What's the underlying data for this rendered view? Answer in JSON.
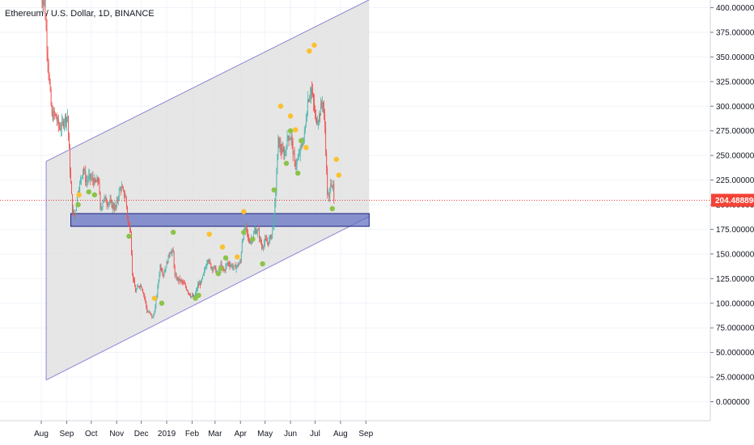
{
  "chart_data": {
    "type": "candlestick",
    "title": "Ethereum / U.S. Dollar, 1D, BINANCE",
    "symbol": "Ethereum / U.S. Dollar",
    "interval": "1D",
    "exchange": "BINANCE",
    "last_price": "204.488898",
    "y_axis": {
      "range": [
        -20,
        410
      ],
      "ticks": [
        "400.000000",
        "375.000000",
        "350.000000",
        "325.000000",
        "300.000000",
        "275.000000",
        "250.000000",
        "225.000000",
        "200.000000",
        "175.000000",
        "150.000000",
        "125.000000",
        "100.000000",
        "75.000000",
        "50.000000",
        "25.000000",
        "0.000000"
      ],
      "tick_values": [
        400,
        375,
        350,
        325,
        300,
        275,
        250,
        225,
        200,
        175,
        150,
        125,
        100,
        75,
        50,
        25,
        0
      ]
    },
    "x_axis": {
      "ticks": [
        "Aug",
        "Sep",
        "Oct",
        "Nov",
        "Dec",
        "2019",
        "Feb",
        "Mar",
        "Apr",
        "May",
        "Jun",
        "Jul",
        "Aug",
        "Sep"
      ],
      "tick_dates": [
        "2018-08-01",
        "2018-09-01",
        "2018-10-01",
        "2018-11-01",
        "2018-12-01",
        "2019-01-01",
        "2019-02-01",
        "2019-03-01",
        "2019-04-01",
        "2019-05-01",
        "2019-06-01",
        "2019-07-01",
        "2019-08-01",
        "2019-09-01"
      ]
    },
    "close_series": [
      [
        "2018-08-01",
        410
      ],
      [
        "2018-08-05",
        408
      ],
      [
        "2018-08-08",
        362
      ],
      [
        "2018-08-11",
        322
      ],
      [
        "2018-08-14",
        290
      ],
      [
        "2018-08-17",
        292
      ],
      [
        "2018-08-20",
        286
      ],
      [
        "2018-08-23",
        278
      ],
      [
        "2018-08-26",
        280
      ],
      [
        "2018-08-29",
        287
      ],
      [
        "2018-09-02",
        290
      ],
      [
        "2018-09-05",
        235
      ],
      [
        "2018-09-08",
        195
      ],
      [
        "2018-09-11",
        188
      ],
      [
        "2018-09-14",
        210
      ],
      [
        "2018-09-18",
        224
      ],
      [
        "2018-09-21",
        238
      ],
      [
        "2018-09-25",
        223
      ],
      [
        "2018-09-28",
        228
      ],
      [
        "2018-10-02",
        226
      ],
      [
        "2018-10-06",
        222
      ],
      [
        "2018-10-10",
        225
      ],
      [
        "2018-10-12",
        194
      ],
      [
        "2018-10-16",
        207
      ],
      [
        "2018-10-20",
        203
      ],
      [
        "2018-10-24",
        202
      ],
      [
        "2018-10-28",
        198
      ],
      [
        "2018-10-31",
        197
      ],
      [
        "2018-11-03",
        210
      ],
      [
        "2018-11-06",
        218
      ],
      [
        "2018-11-09",
        212
      ],
      [
        "2018-11-12",
        207
      ],
      [
        "2018-11-15",
        180
      ],
      [
        "2018-11-18",
        175
      ],
      [
        "2018-11-20",
        130
      ],
      [
        "2018-11-24",
        112
      ],
      [
        "2018-11-28",
        118
      ],
      [
        "2018-12-01",
        118
      ],
      [
        "2018-12-05",
        106
      ],
      [
        "2018-12-08",
        92
      ],
      [
        "2018-12-11",
        90
      ],
      [
        "2018-12-15",
        85
      ],
      [
        "2018-12-18",
        96
      ],
      [
        "2018-12-21",
        116
      ],
      [
        "2018-12-24",
        138
      ],
      [
        "2018-12-28",
        130
      ],
      [
        "2019-01-01",
        140
      ],
      [
        "2019-01-05",
        153
      ],
      [
        "2019-01-09",
        151
      ],
      [
        "2019-01-11",
        127
      ],
      [
        "2019-01-15",
        124
      ],
      [
        "2019-01-19",
        122
      ],
      [
        "2019-01-23",
        118
      ],
      [
        "2019-01-27",
        112
      ],
      [
        "2019-01-31",
        107
      ],
      [
        "2019-02-04",
        106
      ],
      [
        "2019-02-08",
        118
      ],
      [
        "2019-02-12",
        121
      ],
      [
        "2019-02-16",
        132
      ],
      [
        "2019-02-20",
        146
      ],
      [
        "2019-02-24",
        137
      ],
      [
        "2019-02-28",
        136
      ],
      [
        "2019-03-04",
        130
      ],
      [
        "2019-03-08",
        138
      ],
      [
        "2019-03-12",
        133
      ],
      [
        "2019-03-16",
        141
      ],
      [
        "2019-03-20",
        139
      ],
      [
        "2019-03-24",
        136
      ],
      [
        "2019-03-28",
        138
      ],
      [
        "2019-04-01",
        142
      ],
      [
        "2019-04-03",
        164
      ],
      [
        "2019-04-07",
        178
      ],
      [
        "2019-04-11",
        163
      ],
      [
        "2019-04-15",
        166
      ],
      [
        "2019-04-19",
        174
      ],
      [
        "2019-04-23",
        172
      ],
      [
        "2019-04-27",
        157
      ],
      [
        "2019-05-01",
        163
      ],
      [
        "2019-05-05",
        162
      ],
      [
        "2019-05-09",
        170
      ],
      [
        "2019-05-12",
        186
      ],
      [
        "2019-05-14",
        215
      ],
      [
        "2019-05-17",
        265
      ],
      [
        "2019-05-21",
        254
      ],
      [
        "2019-05-25",
        252
      ],
      [
        "2019-05-29",
        270
      ],
      [
        "2019-06-02",
        268
      ],
      [
        "2019-06-06",
        241
      ],
      [
        "2019-06-10",
        245
      ],
      [
        "2019-06-14",
        259
      ],
      [
        "2019-06-18",
        271
      ],
      [
        "2019-06-22",
        306
      ],
      [
        "2019-06-26",
        318
      ],
      [
        "2019-06-28",
        308
      ],
      [
        "2019-07-02",
        285
      ],
      [
        "2019-07-06",
        290
      ],
      [
        "2019-07-10",
        307
      ],
      [
        "2019-07-13",
        279
      ],
      [
        "2019-07-16",
        212
      ],
      [
        "2019-07-18",
        205
      ],
      [
        "2019-07-20",
        225
      ],
      [
        "2019-07-23",
        217
      ],
      [
        "2019-07-24",
        204.49
      ]
    ],
    "channel": {
      "upper": [
        [
          "2018-08-07",
          244
        ],
        [
          "2019-09-05",
          408
        ]
      ],
      "lower": [
        [
          "2018-08-07",
          22
        ],
        [
          "2019-09-05",
          188
        ]
      ]
    },
    "support_zone": {
      "y_from": 178,
      "y_to": 191,
      "x_from": "2018-09-06",
      "x_to": "2019-09-05"
    },
    "signals_buy": [
      [
        "2018-09-15",
        200
      ],
      [
        "2018-09-28",
        213
      ],
      [
        "2018-10-05",
        210
      ],
      [
        "2018-11-16",
        168
      ],
      [
        "2018-12-26",
        100
      ],
      [
        "2019-01-09",
        172
      ],
      [
        "2019-02-05",
        105
      ],
      [
        "2019-02-09",
        108
      ],
      [
        "2019-03-05",
        130
      ],
      [
        "2019-03-08",
        135
      ],
      [
        "2019-03-14",
        146
      ],
      [
        "2019-04-05",
        172
      ],
      [
        "2019-04-16",
        165
      ],
      [
        "2019-04-28",
        140
      ],
      [
        "2019-05-12",
        215
      ],
      [
        "2019-05-27",
        242
      ],
      [
        "2019-06-01",
        275
      ],
      [
        "2019-06-10",
        232
      ],
      [
        "2019-06-14",
        265
      ],
      [
        "2019-07-22",
        196
      ]
    ],
    "signals_sell": [
      [
        "2018-09-16",
        210
      ],
      [
        "2018-12-17",
        105
      ],
      [
        "2019-02-22",
        170
      ],
      [
        "2019-03-10",
        157
      ],
      [
        "2019-03-28",
        147
      ],
      [
        "2019-04-05",
        193
      ],
      [
        "2019-05-20",
        300
      ],
      [
        "2019-06-01",
        290
      ],
      [
        "2019-06-07",
        276
      ],
      [
        "2019-06-20",
        258
      ],
      [
        "2019-06-24",
        356
      ],
      [
        "2019-06-30",
        362
      ],
      [
        "2019-07-27",
        246
      ],
      [
        "2019-07-30",
        230
      ]
    ],
    "colors": {
      "up": "#4db6ac",
      "down": "#ef5350",
      "buy_signal": "#8bc34a",
      "sell_signal": "#fbc02d",
      "channel_line": "#8c86d8",
      "channel_fill": "#dedede",
      "support_fill": "#5c6bc0",
      "support_stroke": "#1a237e",
      "price_line": "#e53935",
      "price_tag": "#f44336",
      "grid": "#f0f3fa"
    },
    "grid": true
  }
}
